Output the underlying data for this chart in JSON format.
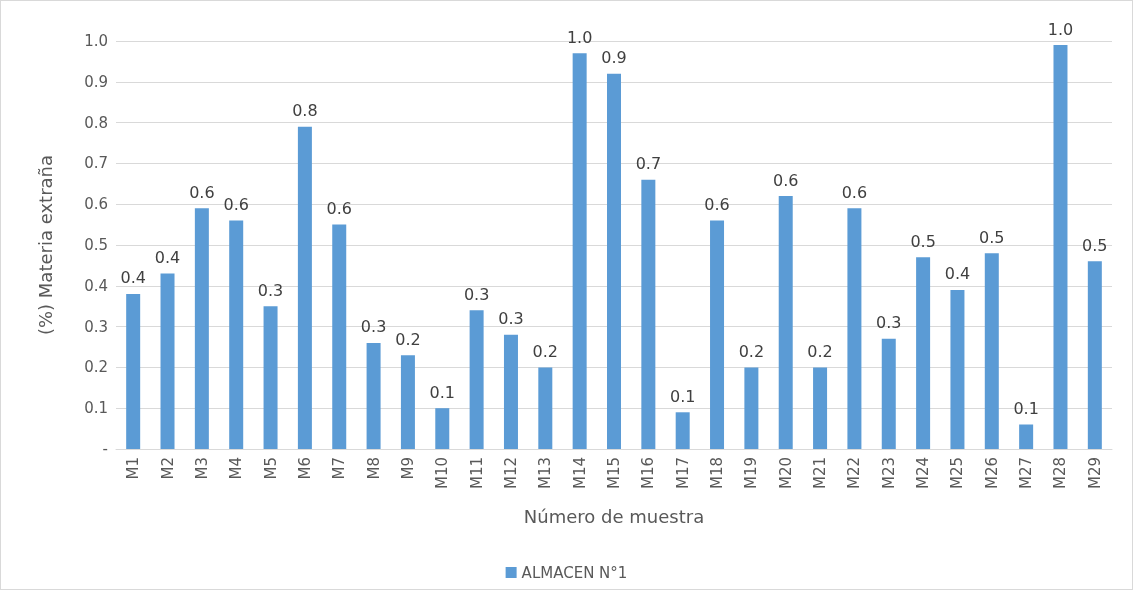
{
  "chart_data": {
    "type": "bar",
    "xlabel": "Número de muestra",
    "ylabel": "(%) Materia extraña",
    "categories": [
      "M1",
      "M2",
      "M3",
      "M4",
      "M5",
      "M6",
      "M7",
      "M8",
      "M9",
      "M10",
      "M11",
      "M12",
      "M13",
      "M14",
      "M15",
      "M16",
      "M17",
      "M18",
      "M19",
      "M20",
      "M21",
      "M22",
      "M23",
      "M24",
      "M25",
      "M26",
      "M27",
      "M28",
      "M29"
    ],
    "series": [
      {
        "name": "ALMACEN N°1",
        "color": "#5b9bd5",
        "values": [
          0.38,
          0.43,
          0.59,
          0.56,
          0.35,
          0.79,
          0.55,
          0.26,
          0.23,
          0.1,
          0.34,
          0.28,
          0.2,
          0.97,
          0.92,
          0.66,
          0.09,
          0.56,
          0.2,
          0.62,
          0.2,
          0.59,
          0.27,
          0.47,
          0.39,
          0.48,
          0.06,
          0.99,
          0.46
        ],
        "value_labels": [
          "0.4",
          "0.4",
          "0.6",
          "0.6",
          "0.3",
          "0.8",
          "0.6",
          "0.3",
          "0.2",
          "0.1",
          "0.3",
          "0.3",
          "0.2",
          "1.0",
          "0.9",
          "0.7",
          "0.1",
          "0.6",
          "0.2",
          "0.6",
          "0.2",
          "0.6",
          "0.3",
          "0.5",
          "0.4",
          "0.5",
          "0.1",
          "1.0",
          "0.5"
        ]
      }
    ],
    "ylim": [
      0,
      1
    ],
    "yticks": [
      {
        "value": 0,
        "label": "-"
      },
      0.1,
      0.2,
      0.3,
      0.4,
      0.5,
      0.6,
      0.7,
      0.8,
      0.9,
      {
        "value": 1,
        "label": "1.0"
      }
    ],
    "grid": "y",
    "legend": "bottom"
  }
}
